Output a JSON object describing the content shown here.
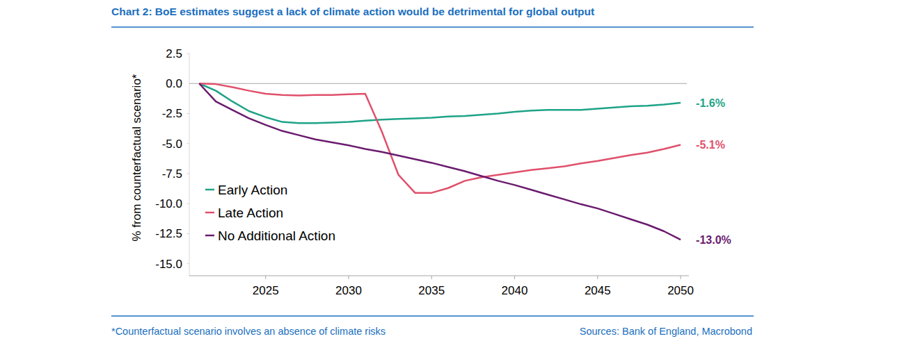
{
  "chart_data": {
    "type": "line",
    "title": "Chart 2: BoE estimates suggest a lack of climate action would be detrimental for global output",
    "y_label": "% from counterfactual scenario*",
    "footnote": "*Counterfactual scenario involves an absence of climate risks",
    "source": "Sources: Bank of England, Macrobond",
    "x": [
      2021,
      2022,
      2023,
      2024,
      2025,
      2026,
      2027,
      2028,
      2029,
      2030,
      2031,
      2032,
      2033,
      2034,
      2035,
      2036,
      2037,
      2038,
      2039,
      2040,
      2041,
      2042,
      2043,
      2044,
      2045,
      2046,
      2047,
      2048,
      2049,
      2050
    ],
    "xlim": [
      2020.4,
      2050.5
    ],
    "xticks": [
      2025,
      2030,
      2035,
      2040,
      2045,
      2050
    ],
    "ylim": [
      -16,
      2.5
    ],
    "yticks": [
      2.5,
      {
        "value": 0,
        "label": "0.0"
      },
      -2.5,
      {
        "value": -5,
        "label": "-5.0"
      },
      -7.5,
      {
        "value": -10,
        "label": "-10.0"
      },
      -12.5,
      {
        "value": -15,
        "label": "-15.0"
      }
    ],
    "grid": false,
    "legend": "left",
    "data_labels": true,
    "series": [
      {
        "name": "Early Action",
        "color": "#1ea387",
        "values": [
          0,
          -0.6,
          -1.5,
          -2.3,
          -2.8,
          -3.2,
          -3.3,
          -3.3,
          -3.25,
          -3.2,
          -3.1,
          -3.0,
          -2.95,
          -2.9,
          -2.85,
          -2.75,
          -2.7,
          -2.6,
          -2.5,
          -2.35,
          -2.25,
          -2.2,
          -2.2,
          -2.2,
          -2.1,
          -2.0,
          -1.9,
          -1.85,
          -1.75,
          -1.6
        ],
        "value_labels": [
          null,
          null,
          null,
          null,
          null,
          null,
          null,
          null,
          null,
          null,
          null,
          null,
          null,
          null,
          null,
          null,
          null,
          null,
          null,
          null,
          null,
          null,
          null,
          null,
          null,
          null,
          null,
          null,
          null,
          "-1.6%"
        ]
      },
      {
        "name": "Late Action",
        "color": "#e0506b",
        "values": [
          0,
          -0.05,
          -0.3,
          -0.6,
          -0.85,
          -0.95,
          -1.0,
          -0.95,
          -0.95,
          -0.9,
          -0.85,
          -4.0,
          -7.6,
          -9.1,
          -9.1,
          -8.7,
          -8.1,
          -7.8,
          -7.6,
          -7.4,
          -7.2,
          -7.05,
          -6.9,
          -6.65,
          -6.45,
          -6.2,
          -5.95,
          -5.75,
          -5.45,
          -5.1
        ],
        "value_labels": [
          null,
          null,
          null,
          null,
          null,
          null,
          null,
          null,
          null,
          null,
          null,
          null,
          null,
          null,
          null,
          null,
          null,
          null,
          null,
          null,
          null,
          null,
          null,
          null,
          null,
          null,
          null,
          null,
          null,
          "-5.1%"
        ]
      },
      {
        "name": "No Additional Action",
        "color": "#6a1b6e",
        "values": [
          0,
          -1.5,
          -2.2,
          -2.9,
          -3.45,
          -3.95,
          -4.3,
          -4.65,
          -4.9,
          -5.15,
          -5.45,
          -5.7,
          -6.0,
          -6.3,
          -6.6,
          -6.95,
          -7.3,
          -7.7,
          -8.1,
          -8.45,
          -8.85,
          -9.25,
          -9.65,
          -10.05,
          -10.4,
          -10.85,
          -11.3,
          -11.75,
          -12.3,
          -13.0
        ],
        "value_labels": [
          null,
          null,
          null,
          null,
          null,
          null,
          null,
          null,
          null,
          null,
          null,
          null,
          null,
          null,
          null,
          null,
          null,
          null,
          null,
          null,
          null,
          null,
          null,
          null,
          null,
          null,
          null,
          null,
          null,
          "-13.0%"
        ]
      }
    ]
  }
}
